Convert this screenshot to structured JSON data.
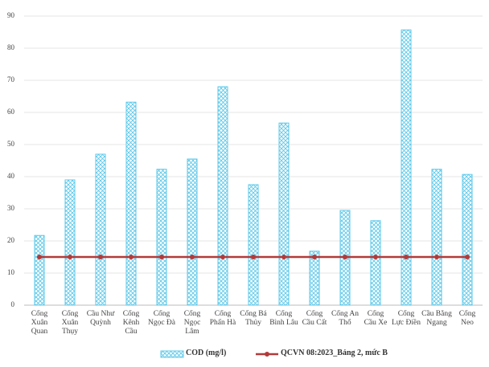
{
  "chart_data": {
    "type": "bar",
    "categories": [
      "Cống Xuân Quan",
      "Cống Xuân Thụy",
      "Cầu Như Quỳnh",
      "Cống Kênh Cầu",
      "Cống Ngọc Đà",
      "Cống Ngọc Lâm",
      "Cống Phấn Hà",
      "Cống Bá Thủy",
      "Cống Bình Lâu",
      "Cống Cầu Cất",
      "Cống An Thổ",
      "Cống Cầu Xe",
      "Cống Lực Điền",
      "Cầu Bằng Ngang",
      "Cống Neo"
    ],
    "series": [
      {
        "name": "COD (mg/l)",
        "type": "bar",
        "color": "#5bc8ea",
        "values": [
          21.7,
          39,
          47,
          63.2,
          42.3,
          45.5,
          68,
          37.5,
          56.7,
          16.8,
          29.5,
          26.3,
          85.7,
          42.3,
          40.7
        ]
      },
      {
        "name": "QCVN 08:2023_Bảng 2, mức B",
        "type": "line",
        "color": "#b33a3a",
        "values": [
          15,
          15,
          15,
          15,
          15,
          15,
          15,
          15,
          15,
          15,
          15,
          15,
          15,
          15,
          15
        ]
      }
    ],
    "ylim": [
      0,
      90
    ],
    "yticks": [
      0,
      10,
      20,
      30,
      40,
      50,
      60,
      70,
      80,
      90
    ],
    "grid": true
  }
}
